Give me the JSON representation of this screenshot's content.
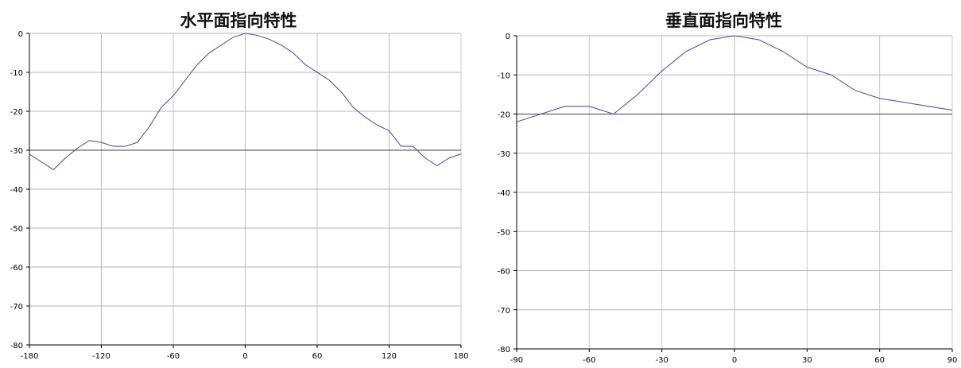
{
  "chart_data": [
    {
      "type": "line",
      "title": "水平面指向特性",
      "xlabel": "",
      "ylabel": "",
      "xlim": [
        -180,
        180
      ],
      "ylim": [
        -80,
        0
      ],
      "xticks": [
        -180,
        -120,
        -60,
        0,
        60,
        120,
        180
      ],
      "yticks": [
        0,
        -10,
        -20,
        -30,
        -40,
        -50,
        -60,
        -70,
        -80
      ],
      "x_tick_labels": [
        "-180",
        "-120",
        "-60",
        "0",
        "60",
        "120",
        "180"
      ],
      "y_tick_labels": [
        "0",
        "-10",
        "-20",
        "-30",
        "-40",
        "-50",
        "-60",
        "-70",
        "-80"
      ],
      "reference_line_y": -30,
      "grid": true,
      "line_color": "#5555aa",
      "series": [
        {
          "x": [
            -180,
            -170,
            -160,
            -150,
            -140,
            -130,
            -120,
            -110,
            -100,
            -90,
            -80,
            -70,
            -60,
            -50,
            -40,
            -30,
            -20,
            -10,
            0,
            10,
            20,
            30,
            40,
            50,
            60,
            70,
            80,
            90,
            100,
            110,
            120,
            130,
            140,
            150,
            160,
            170,
            180
          ],
          "y": [
            -31,
            -33,
            -35,
            -32,
            -29.5,
            -27.5,
            -28,
            -29,
            -29,
            -28,
            -24,
            -19,
            -16,
            -12,
            -8,
            -5,
            -3,
            -1,
            0,
            -0.5,
            -1.5,
            -3,
            -5,
            -8,
            -10,
            -12,
            -15,
            -19,
            -21.5,
            -23.5,
            -25,
            -29,
            -29,
            -32,
            -34,
            -32,
            -31
          ]
        }
      ]
    },
    {
      "type": "line",
      "title": "垂直面指向特性",
      "xlabel": "",
      "ylabel": "",
      "xlim": [
        -90,
        90
      ],
      "ylim": [
        -80,
        0
      ],
      "xticks": [
        -90,
        -60,
        -30,
        0,
        30,
        60,
        90
      ],
      "yticks": [
        0,
        -10,
        -20,
        -30,
        -40,
        -50,
        -60,
        -70,
        -80
      ],
      "x_tick_labels": [
        "-90",
        "-60",
        "-30",
        "0",
        "30",
        "60",
        "90"
      ],
      "y_tick_labels": [
        "0",
        "-10",
        "-20",
        "-30",
        "-40",
        "-50",
        "-60",
        "-70",
        "-80"
      ],
      "reference_line_y": -20,
      "grid": true,
      "line_color": "#5555aa",
      "series": [
        {
          "x": [
            -90,
            -80,
            -70,
            -60,
            -50,
            -40,
            -30,
            -20,
            -10,
            0,
            10,
            20,
            30,
            40,
            50,
            60,
            70,
            80,
            90
          ],
          "y": [
            -22,
            -20,
            -18,
            -18,
            -20,
            -15,
            -9,
            -4,
            -1,
            0,
            -1,
            -4,
            -8,
            -10,
            -14,
            -16,
            -17,
            -18,
            -19
          ]
        }
      ]
    }
  ]
}
